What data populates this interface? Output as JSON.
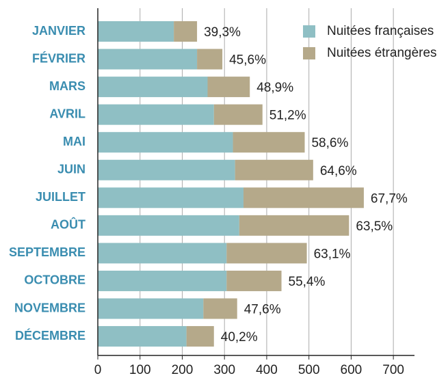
{
  "chart_data": {
    "type": "stacked_bar_horizontal",
    "categories": [
      "JANVIER",
      "FÉVRIER",
      "MARS",
      "AVRIL",
      "MAI",
      "JUIN",
      "JUILLET",
      "AOÛT",
      "SEPTEMBRE",
      "OCTOBRE",
      "NOVEMBRE",
      "DÉCEMBRE"
    ],
    "series": [
      {
        "name": "Nuitées françaises",
        "color": "#8fbfc4",
        "values": [
          180,
          235,
          260,
          275,
          320,
          325,
          345,
          335,
          305,
          305,
          250,
          210
        ]
      },
      {
        "name": "Nuitées étrangères",
        "color": "#b5a98a",
        "values": [
          55,
          60,
          100,
          115,
          170,
          185,
          285,
          260,
          190,
          130,
          80,
          65
        ]
      }
    ],
    "annotations": [
      "39,3%",
      "45,6%",
      "48,9%",
      "51,2%",
      "58,6%",
      "64,6%",
      "67,7%",
      "63,5%",
      "63,1%",
      "55,4%",
      "47,6%",
      "40,2%"
    ],
    "xlim": [
      0,
      750
    ],
    "xticks": [
      0,
      100,
      200,
      300,
      400,
      500,
      600,
      700
    ],
    "grid": true,
    "legend": "top-right"
  }
}
